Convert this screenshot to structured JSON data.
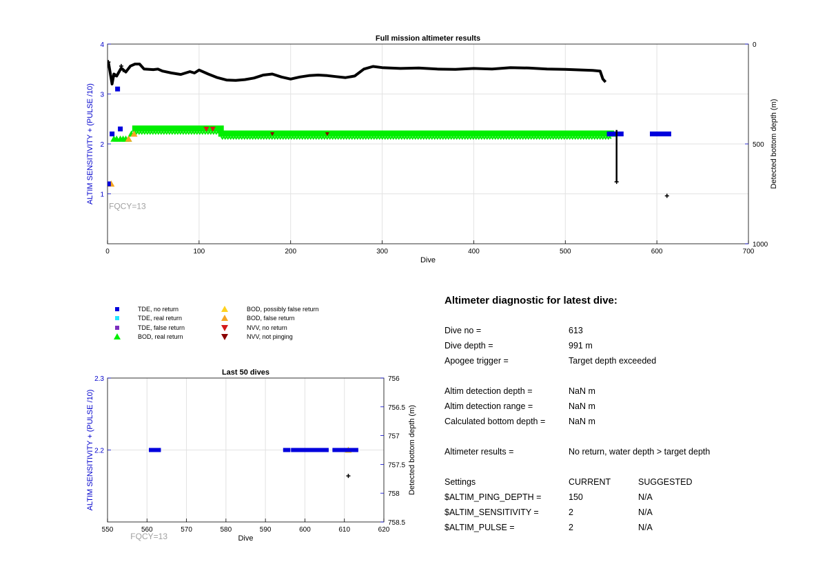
{
  "colors": {
    "tde_no_return": "#0000dd",
    "tde_real_return": "#22e6ff",
    "tde_false_return": "#7b2fbe",
    "bod_real_return": "#00ee00",
    "bod_possibly_false": "#ffd21f",
    "bod_false_return": "#f5a623",
    "nvv_no_return": "#d41a1a",
    "nvv_not_pinging": "#8b0000",
    "bottom_depth": "#000000",
    "left_axis": "#0000cc",
    "grid": "#e2e2e2"
  },
  "legend": [
    {
      "label": "TDE, no return",
      "symbol": "square",
      "color": "tde_no_return"
    },
    {
      "label": "TDE, real return",
      "symbol": "square",
      "color": "tde_real_return"
    },
    {
      "label": "TDE, false return",
      "symbol": "square",
      "color": "tde_false_return"
    },
    {
      "label": "BOD, real return",
      "symbol": "triangle-up",
      "color": "bod_real_return"
    },
    {
      "label": "BOD, possibly false return",
      "symbol": "triangle-up",
      "color": "bod_possibly_false"
    },
    {
      "label": "BOD, false return",
      "symbol": "triangle-up",
      "color": "bod_false_return"
    },
    {
      "label": "NVV, no return",
      "symbol": "triangle-down",
      "color": "nvv_no_return"
    },
    {
      "label": "NVV, not pinging",
      "symbol": "triangle-down",
      "color": "nvv_not_pinging"
    }
  ],
  "chart_data": [
    {
      "id": "full",
      "type": "scatter",
      "title": "Full mission altimeter results",
      "xlabel": "Dive",
      "ylabel_left": "ALTIM SENSITIVITY + (PULSE /10)",
      "ylabel_right": "Detected bottom depth (m)",
      "xlim": [
        0,
        700
      ],
      "xticks": [
        0,
        100,
        200,
        300,
        400,
        500,
        600,
        700
      ],
      "ylim_left": [
        0,
        4
      ],
      "yticks_left": [
        1,
        2,
        3,
        4
      ],
      "ylim_right": [
        0,
        1000
      ],
      "right_reversed": true,
      "yticks_right": [
        0,
        500,
        1000
      ],
      "annotation": "FQCY=13",
      "grid": true,
      "tde_no_return_points": [
        [
          1,
          1.2
        ],
        [
          5,
          2.2
        ],
        [
          11,
          3.1
        ],
        [
          14,
          2.3
        ],
        [
          548,
          2.2
        ],
        [
          552,
          2.2
        ],
        [
          557,
          2.2
        ],
        [
          561,
          2.2
        ]
      ],
      "tde_no_return_ranges": [
        [
          595,
          613,
          2.2
        ]
      ],
      "bod_real_return_points": [
        [
          7,
          2.1
        ],
        [
          10,
          2.1
        ],
        [
          14,
          2.1
        ],
        [
          17,
          2.1
        ],
        [
          20,
          2.1
        ],
        [
          23,
          2.1
        ],
        [
          26,
          2.2
        ],
        [
          30,
          2.3
        ],
        [
          553,
          2.2
        ]
      ],
      "bod_real_return_ranges": [
        [
          30,
          124,
          2.3
        ],
        [
          124,
          550,
          2.2
        ]
      ],
      "bod_false_return_points": [
        [
          4,
          1.2
        ],
        [
          23,
          2.1
        ],
        [
          29,
          2.2
        ]
      ],
      "nvv_no_return_points": [
        [
          108,
          2.3
        ],
        [
          115,
          2.3
        ]
      ],
      "nvv_not_pinging_points": [
        [
          180,
          2.2
        ],
        [
          240,
          2.2
        ]
      ],
      "bottom_depth_series": [
        [
          1,
          90
        ],
        [
          5,
          200
        ],
        [
          7,
          150
        ],
        [
          10,
          160
        ],
        [
          15,
          120
        ],
        [
          20,
          140
        ],
        [
          25,
          110
        ],
        [
          30,
          100
        ],
        [
          35,
          100
        ],
        [
          40,
          125
        ],
        [
          50,
          128
        ],
        [
          55,
          125
        ],
        [
          60,
          135
        ],
        [
          70,
          145
        ],
        [
          80,
          152
        ],
        [
          90,
          138
        ],
        [
          95,
          145
        ],
        [
          100,
          130
        ],
        [
          110,
          150
        ],
        [
          120,
          168
        ],
        [
          130,
          180
        ],
        [
          140,
          182
        ],
        [
          150,
          178
        ],
        [
          160,
          170
        ],
        [
          170,
          155
        ],
        [
          180,
          150
        ],
        [
          190,
          165
        ],
        [
          200,
          175
        ],
        [
          210,
          165
        ],
        [
          220,
          158
        ],
        [
          230,
          155
        ],
        [
          240,
          158
        ],
        [
          250,
          163
        ],
        [
          260,
          168
        ],
        [
          270,
          160
        ],
        [
          280,
          125
        ],
        [
          290,
          112
        ],
        [
          300,
          118
        ],
        [
          320,
          122
        ],
        [
          340,
          120
        ],
        [
          360,
          125
        ],
        [
          380,
          127
        ],
        [
          400,
          122
        ],
        [
          420,
          125
        ],
        [
          440,
          118
        ],
        [
          460,
          120
        ],
        [
          480,
          125
        ],
        [
          500,
          127
        ],
        [
          520,
          130
        ],
        [
          530,
          132
        ],
        [
          538,
          135
        ],
        [
          541,
          175
        ],
        [
          544,
          190
        ]
      ],
      "bottom_depth_points": [
        [
          1,
          90
        ],
        [
          6,
          160
        ],
        [
          8,
          155
        ],
        [
          15,
          110
        ],
        [
          17,
          130
        ],
        [
          556,
          690
        ],
        [
          611,
          760
        ]
      ],
      "bottom_depth_vertical": [
        [
          556,
          430,
          690
        ]
      ]
    },
    {
      "id": "last50",
      "type": "scatter",
      "title": "Last 50 dives",
      "xlabel": "Dive",
      "ylabel_left": "ALTIM SENSITIVITY + (PULSE /10)",
      "ylabel_right": "Detected bottom depth (m)",
      "xlim": [
        550,
        620
      ],
      "xticks": [
        550,
        560,
        570,
        580,
        590,
        600,
        610,
        620
      ],
      "ylim_left": [
        2.1,
        2.3
      ],
      "yticks_left": [
        2.2,
        2.3
      ],
      "ylim_right": [
        756,
        758.5
      ],
      "right_reversed": true,
      "yticks_right": [
        756,
        756.5,
        757,
        757.5,
        758,
        758.5
      ],
      "ytick_labels_right": [
        "756",
        "756.5",
        "757",
        "757.5",
        "758",
        "758.5"
      ],
      "annotation": "FQCY=13",
      "grid": true,
      "tde_no_return_ranges": [
        [
          561,
          563,
          2.2
        ],
        [
          595,
          595.8,
          2.2
        ],
        [
          597,
          605.5,
          2.2
        ],
        [
          607.5,
          613,
          2.2
        ]
      ],
      "bod_possibly_false_points": [
        [
          611,
          2.2
        ]
      ],
      "bottom_depth_points": [
        [
          611,
          757.7
        ]
      ]
    }
  ],
  "diagnostic": {
    "title": "Altimeter diagnostic for latest dive:",
    "dive_no_label": "Dive no =",
    "dive_no": "613",
    "dive_depth_label": "Dive depth =",
    "dive_depth": "991 m",
    "apogee_label": "Apogee trigger =",
    "apogee": "Target depth exceeded",
    "detection_depth_label": "Altim detection depth =",
    "detection_depth": "NaN m",
    "detection_range_label": "Altim detection range =",
    "detection_range": "NaN m",
    "calc_depth_label": "Calculated bottom depth =",
    "calc_depth": "NaN m",
    "results_label": "Altimeter results =",
    "results": "No return, water depth > target depth",
    "settings_label": "Settings",
    "current_label": "CURRENT",
    "suggested_label": "SUGGESTED",
    "settings": [
      {
        "name": "$ALTIM_PING_DEPTH =",
        "current": "150",
        "suggested": "N/A"
      },
      {
        "name": "$ALTIM_SENSITIVITY =",
        "current": "2",
        "suggested": "N/A"
      },
      {
        "name": "$ALTIM_PULSE =",
        "current": "2",
        "suggested": "N/A"
      }
    ]
  }
}
